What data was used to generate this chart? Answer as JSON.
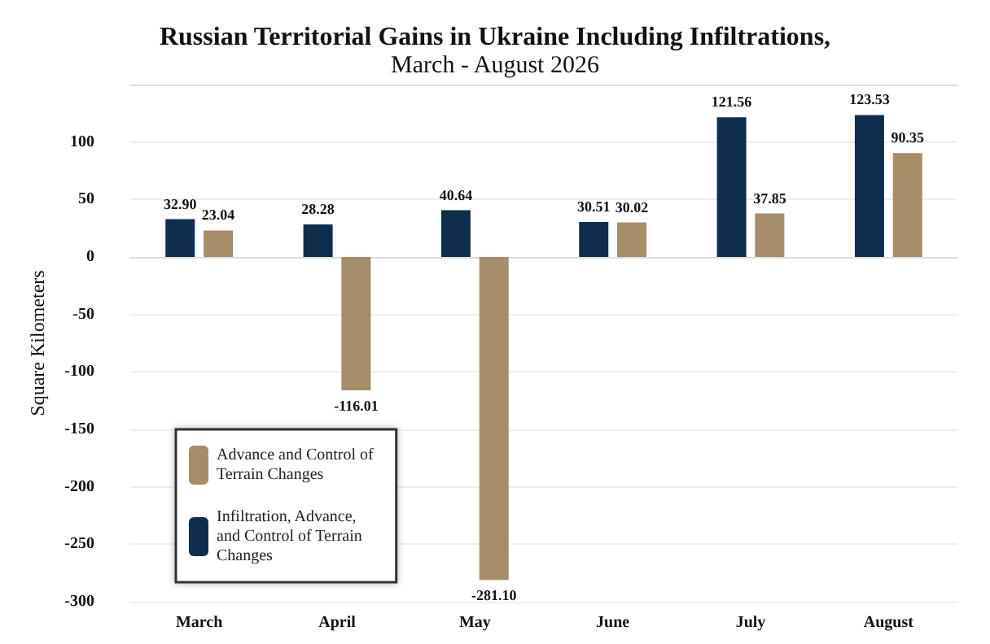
{
  "chart_data": {
    "type": "bar",
    "title": "Russian Territorial Gains in Ukraine Including Infiltrations,",
    "subtitle": "March - August 2026",
    "ylabel": "Square Kilometers",
    "categories": [
      "March",
      "April",
      "May",
      "June",
      "July",
      "August"
    ],
    "series": [
      {
        "name": "Infiltration, Advance, and Control of Terrain Changes",
        "color": "#0f2d4d",
        "values": [
          32.9,
          28.28,
          40.64,
          30.51,
          121.56,
          123.53
        ],
        "value_labels": [
          "32.90",
          "28.28",
          "40.64",
          "30.51",
          "121.56",
          "123.53"
        ]
      },
      {
        "name": "Advance and Control of Terrain Changes",
        "color": "#a58d68",
        "values": [
          23.04,
          -116.01,
          -281.1,
          30.02,
          37.85,
          90.35
        ],
        "value_labels": [
          "23.04",
          "-116.01",
          "-281.10",
          "30.02",
          "37.85",
          "90.35"
        ]
      }
    ],
    "ylim": [
      -300,
      150
    ],
    "yticks": [
      -300,
      -250,
      -200,
      -150,
      -100,
      -50,
      0,
      50,
      100
    ],
    "grid": "y",
    "legend": "bottom left"
  }
}
